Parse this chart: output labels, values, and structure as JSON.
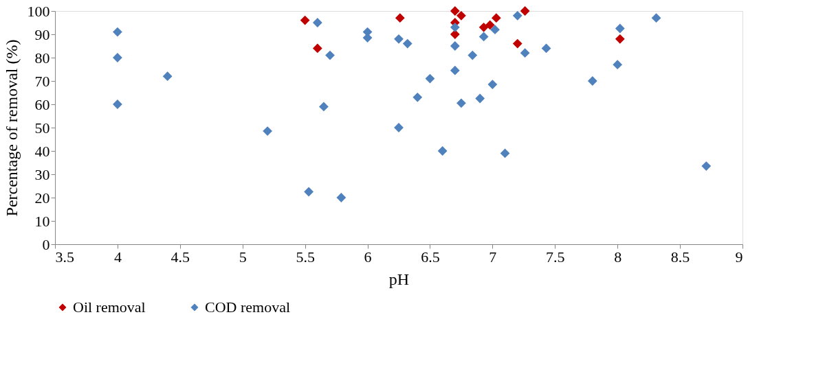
{
  "chart_data": {
    "type": "scatter",
    "xlabel": "pH",
    "ylabel": "Percentage of removal (%)",
    "xlim": [
      3.5,
      9
    ],
    "xticks": [
      3.5,
      4,
      4.5,
      5,
      5.5,
      6,
      6.5,
      7,
      7.5,
      8,
      8.5,
      9
    ],
    "ylim": [
      0,
      100
    ],
    "yticks": [
      0,
      10,
      20,
      30,
      40,
      50,
      60,
      70,
      80,
      90,
      100
    ],
    "grid": false,
    "legend": "bottom",
    "marker": "diamond",
    "series": [
      {
        "name": "Oil removal",
        "color": "#c00000",
        "x": [
          5.5,
          5.6,
          6.26,
          6.7,
          6.7,
          6.7,
          6.75,
          6.93,
          6.98,
          7.03,
          7.2,
          7.26,
          8.02
        ],
        "values": [
          96,
          84,
          97,
          100,
          95,
          90,
          98,
          93,
          94,
          97,
          86,
          100,
          88
        ]
      },
      {
        "name": "COD removal",
        "color": "#4f81bd",
        "x": [
          4,
          4,
          4,
          4.4,
          5.2,
          5.53,
          5.6,
          5.65,
          5.7,
          5.79,
          6,
          6,
          6.25,
          6.25,
          6.32,
          6.4,
          6.5,
          6.6,
          6.7,
          6.7,
          6.7,
          6.75,
          6.84,
          6.9,
          6.93,
          7.0,
          7.02,
          7.1,
          7.2,
          7.26,
          7.43,
          7.8,
          8.0,
          8.02,
          8.31,
          8.71
        ],
        "values": [
          91,
          80,
          60,
          72,
          48.5,
          22.5,
          95,
          59,
          81,
          20,
          91,
          88.5,
          88,
          50,
          86,
          63,
          71,
          40,
          93,
          85,
          74.5,
          60.5,
          81,
          62.5,
          89,
          68.5,
          92,
          39,
          98,
          82,
          84,
          70,
          77,
          92.5,
          97,
          33.5
        ]
      }
    ]
  }
}
